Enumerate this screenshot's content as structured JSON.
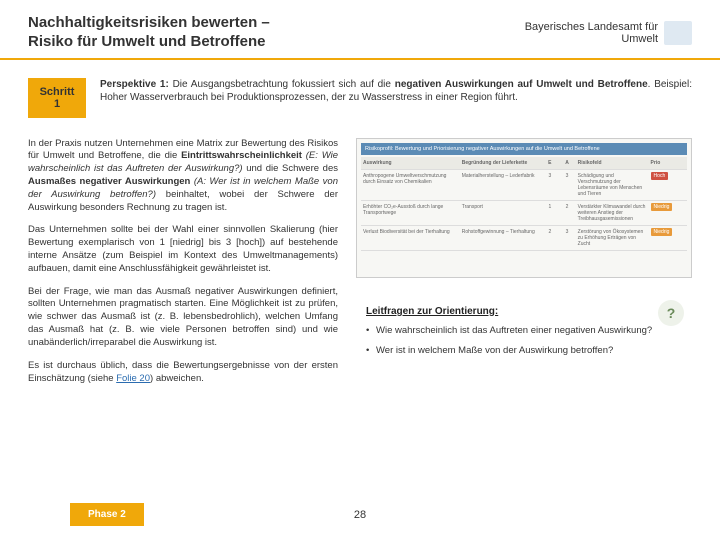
{
  "header": {
    "title_line1": "Nachhaltigkeitsrisiken bewerten –",
    "title_line2": "Risiko für Umwelt und Betroffene",
    "org_line1": "Bayerisches Landesamt für",
    "org_line2": "Umwelt"
  },
  "step": {
    "label": "Schritt 1",
    "bold1": "Perspektive 1:",
    "text1": " Die Ausgangsbetrachtung fokussiert sich auf die ",
    "bold2": "negativen Auswirkungen auf Umwelt und Betroffene",
    "text2": ". Beispiel: Hoher Wasserverbrauch bei Produktionsprozessen, der zu Wasserstress in einer Region führt."
  },
  "left": {
    "p1a": "In der Praxis nutzen Unternehmen eine Matrix zur Bewertung des Risikos für Umwelt und Betroffene, die die ",
    "p1b": "Eintrittswahrscheinlichkeit",
    "p1c": " (E: Wie wahrscheinlich ist das Auftreten der Auswirkung?)",
    "p1d": " und die Schwere des ",
    "p1e": "Ausmaßes negativer Auswirkungen",
    "p1f": " (A: Wer ist in welchem Maße von der Auswirkung betroffen?)",
    "p1g": " beinhaltet, wobei der Schwere der Auswirkung besonders Rechnung zu tragen ist.",
    "p2": "Das Unternehmen sollte bei der Wahl einer sinnvollen Skalierung (hier Bewertung exemplarisch von 1 [niedrig] bis 3 [hoch]) auf bestehende interne Ansätze (zum Beispiel im Kontext des Umweltmanagements) aufbauen, damit eine Anschlussfähigkeit gewährleistet ist.",
    "p3": "Bei der Frage, wie man das Ausmaß negativer Auswirkungen definiert, sollten Unternehmen pragmatisch starten. Eine Möglichkeit ist zu prüfen, wie schwer das Ausmaß ist (z. B. lebensbedrohlich), welchen Umfang das Ausmaß hat (z. B. wie viele Personen betroffen sind) und wie unabänderlich/irreparabel die Auswirkung ist.",
    "p4a": "Es ist durchaus üblich, dass die Bewertungsergebnisse von der ersten Einschätzung (siehe ",
    "p4link": "Folie 20",
    "p4b": ") abweichen."
  },
  "matrix": {
    "header": "Risikoprofil: Bewertung und Priorisierung negativer Auswirkungen auf die Umwelt und Betroffene",
    "th": {
      "c1": "Auswirkung",
      "c2": "Begründung der Lieferkette",
      "c3": "E",
      "c4": "A",
      "c5": "Risikofeld",
      "c6": "Prio"
    },
    "rows": [
      {
        "c1": "Anthropogene Umweltverschmutzung durch Einsatz von Chemikalien",
        "c2": "Materialherstellung – Lederfabrik",
        "c3": "3",
        "c4": "3",
        "c5": "Schädigung und Verschmutzung der Lebensräume von Menschen und Tieren",
        "c6": "Hoch",
        "color": "badge-red"
      },
      {
        "c1": "Erhöhter CO₂e-Ausstoß durch lange Transportwege",
        "c2": "Transport",
        "c3": "1",
        "c4": "2",
        "c5": "Verstärkter Klimawandel durch weiteren Anstieg der Treibhausgasemissionen",
        "c6": "Niedrig",
        "color": "badge-orange"
      },
      {
        "c1": "Verlust Biodiversität bei der Tierhaltung",
        "c2": "Rohstoffgewinnung – Tierhaltung",
        "c3": "2",
        "c4": "3",
        "c5": "Zerstörung von Ökosystemen zu Erhöhung Erträgen von Zucht",
        "c6": "Niedrig",
        "color": "badge-orange"
      }
    ]
  },
  "guide": {
    "title": "Leitfragen zur Orientierung:",
    "q1": "Wie wahrscheinlich ist das Auftreten einer negativen Auswirkung?",
    "q2": "Wer ist in welchem Maße von der Auswirkung betroffen?"
  },
  "footer": {
    "phase": "Phase 2",
    "page": "28"
  },
  "colors": {
    "accent": "#f0a80a",
    "text": "#333333",
    "link": "#2b6cb0"
  }
}
